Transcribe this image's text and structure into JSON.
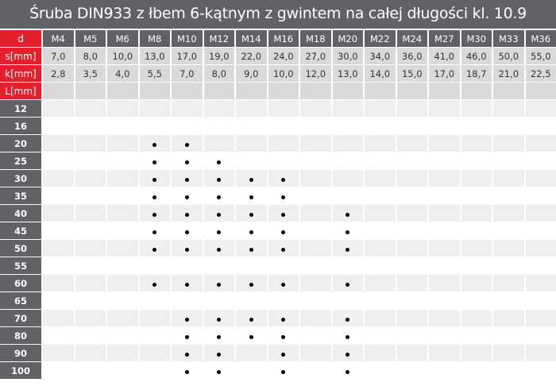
{
  "title": "Śruba DIN933 z łbem 6-kątnym z gwintem na całej długości kl. 10.9",
  "colors": {
    "red": "#e3202b",
    "dark": "#616166"
  },
  "labels": {
    "d": "d",
    "s": "s[mm]",
    "k": "k[mm]",
    "L": "L[mm]"
  },
  "sizes": [
    "M4",
    "M5",
    "M6",
    "M8",
    "M10",
    "M12",
    "M14",
    "M16",
    "M18",
    "M20",
    "M22",
    "M24",
    "M27",
    "M30",
    "M33",
    "M36"
  ],
  "s": [
    "7,0",
    "8,0",
    "10,0",
    "13,0",
    "17,0",
    "19,0",
    "22,0",
    "24,0",
    "27,0",
    "30,0",
    "34,0",
    "36,0",
    "41,0",
    "46,0",
    "50,0",
    "55,0"
  ],
  "k": [
    "2,8",
    "3,5",
    "4,0",
    "5,5",
    "7,0",
    "8,0",
    "9,0",
    "10,0",
    "12,0",
    "13,0",
    "14,0",
    "15,0",
    "17,0",
    "18,7",
    "21,0",
    "22,5"
  ],
  "lengths": [
    {
      "L": "12",
      "available": []
    },
    {
      "L": "16",
      "available": []
    },
    {
      "L": "20",
      "available": [
        "M8",
        "M10"
      ]
    },
    {
      "L": "25",
      "available": [
        "M8",
        "M10",
        "M12"
      ]
    },
    {
      "L": "30",
      "available": [
        "M8",
        "M10",
        "M12",
        "M14",
        "M16"
      ]
    },
    {
      "L": "35",
      "available": [
        "M8",
        "M10",
        "M12",
        "M14",
        "M16"
      ]
    },
    {
      "L": "40",
      "available": [
        "M8",
        "M10",
        "M12",
        "M14",
        "M16",
        "M20"
      ]
    },
    {
      "L": "45",
      "available": [
        "M8",
        "M10",
        "M12",
        "M14",
        "M16",
        "M20"
      ]
    },
    {
      "L": "50",
      "available": [
        "M8",
        "M10",
        "M12",
        "M14",
        "M16",
        "M20"
      ]
    },
    {
      "L": "55",
      "available": []
    },
    {
      "L": "60",
      "available": [
        "M8",
        "M10",
        "M12",
        "M14",
        "M16",
        "M20"
      ]
    },
    {
      "L": "65",
      "available": []
    },
    {
      "L": "70",
      "available": [
        "M10",
        "M12",
        "M14",
        "M16",
        "M20"
      ]
    },
    {
      "L": "80",
      "available": [
        "M10",
        "M12",
        "M14",
        "M16",
        "M20"
      ]
    },
    {
      "L": "90",
      "available": [
        "M10",
        "M12",
        "M16",
        "M20"
      ]
    },
    {
      "L": "100",
      "available": [
        "M10",
        "M12",
        "M16",
        "M20"
      ]
    }
  ]
}
